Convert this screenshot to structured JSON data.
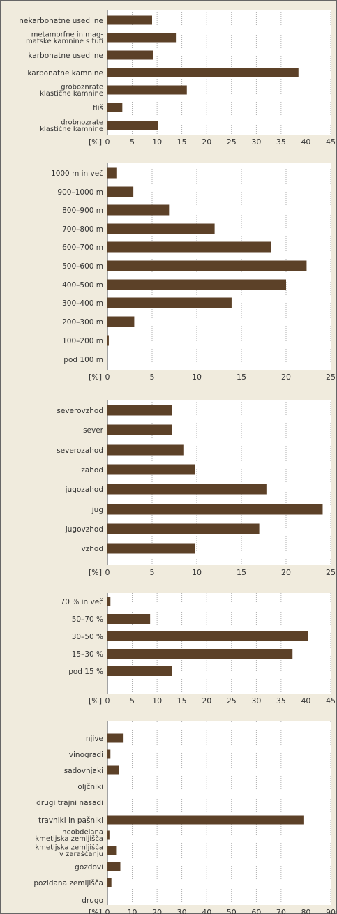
{
  "unit_label": "[%]",
  "colors": {
    "background": "#f0ebdd",
    "plot": "#ffffff",
    "bar": "#5c4128",
    "grid": "#9a9a9a",
    "text": "#333333"
  },
  "chart_data": [
    {
      "type": "bar",
      "orientation": "horizontal",
      "xlim": [
        0,
        45
      ],
      "ticks": [
        0,
        5,
        10,
        15,
        20,
        25,
        30,
        35,
        40,
        45
      ],
      "categories": [
        {
          "label": [
            "nekarbonatne usedline"
          ],
          "value": 9
        },
        {
          "label": [
            "metamorfne in mag-",
            "matske kamnine s tufi"
          ],
          "value": 13.8
        },
        {
          "label": [
            "karbonatne usedline"
          ],
          "value": 9.2
        },
        {
          "label": [
            "karbonatne kamnine"
          ],
          "value": 38.5
        },
        {
          "label": [
            "groboznrate",
            "klastične kamnine"
          ],
          "value": 16
        },
        {
          "label": [
            "fliš"
          ],
          "value": 3
        },
        {
          "label": [
            "drobnozrate",
            "klastične kamnine"
          ],
          "value": 10.2
        }
      ]
    },
    {
      "type": "bar",
      "orientation": "horizontal",
      "xlim": [
        0,
        25
      ],
      "ticks": [
        0,
        5,
        10,
        15,
        20,
        25
      ],
      "categories": [
        {
          "label": [
            "1000 m in več"
          ],
          "value": 1
        },
        {
          "label": [
            "900–1000 m"
          ],
          "value": 2.9
        },
        {
          "label": [
            "800–900 m"
          ],
          "value": 6.9
        },
        {
          "label": [
            "700–800 m"
          ],
          "value": 12
        },
        {
          "label": [
            "600–700 m"
          ],
          "value": 18.3
        },
        {
          "label": [
            "500–600 m"
          ],
          "value": 22.3
        },
        {
          "label": [
            "400–500 m"
          ],
          "value": 20
        },
        {
          "label": [
            "300–400 m"
          ],
          "value": 13.9
        },
        {
          "label": [
            "200–300 m"
          ],
          "value": 3
        },
        {
          "label": [
            "100–200 m"
          ],
          "value": 0.15
        },
        {
          "label": [
            "pod 100 m"
          ],
          "value": 0
        }
      ]
    },
    {
      "type": "bar",
      "orientation": "horizontal",
      "xlim": [
        0,
        25
      ],
      "ticks": [
        0,
        5,
        10,
        15,
        20,
        25
      ],
      "categories": [
        {
          "label": [
            "severovzhod"
          ],
          "value": 7.2
        },
        {
          "label": [
            "sever"
          ],
          "value": 7.2
        },
        {
          "label": [
            "severozahod"
          ],
          "value": 8.5
        },
        {
          "label": [
            "zahod"
          ],
          "value": 9.8
        },
        {
          "label": [
            "jugozahod"
          ],
          "value": 17.8
        },
        {
          "label": [
            "jug"
          ],
          "value": 24.1
        },
        {
          "label": [
            "jugovzhod"
          ],
          "value": 17
        },
        {
          "label": [
            "vzhod"
          ],
          "value": 9.8
        }
      ]
    },
    {
      "type": "bar",
      "orientation": "horizontal",
      "xlim": [
        0,
        45
      ],
      "ticks": [
        0,
        5,
        10,
        15,
        20,
        25,
        30,
        35,
        40,
        45
      ],
      "categories": [
        {
          "label": [
            "70 % in več"
          ],
          "value": 0.6
        },
        {
          "label": [
            "50–70 %"
          ],
          "value": 8.6
        },
        {
          "label": [
            "30–50 %"
          ],
          "value": 40.4
        },
        {
          "label": [
            "15–30 %"
          ],
          "value": 37.3
        },
        {
          "label": [
            "pod 15 %"
          ],
          "value": 13
        }
      ]
    },
    {
      "type": "bar",
      "orientation": "horizontal",
      "xlim": [
        0,
        90
      ],
      "ticks": [
        0,
        10,
        20,
        30,
        40,
        50,
        60,
        70,
        80,
        90
      ],
      "categories": [
        {
          "label": [
            "njive"
          ],
          "value": 6.5
        },
        {
          "label": [
            "vinogradi"
          ],
          "value": 1.2
        },
        {
          "label": [
            "sadovnjaki"
          ],
          "value": 4.7
        },
        {
          "label": [
            "oljčniki"
          ],
          "value": 0
        },
        {
          "label": [
            "drugi trajni nasadi"
          ],
          "value": 0
        },
        {
          "label": [
            "travniki in pašniki"
          ],
          "value": 79
        },
        {
          "label": [
            "neobdelana",
            "kmetijska zemljišča"
          ],
          "value": 0.8
        },
        {
          "label": [
            "kmetijska zemljišča",
            "v zaraščanju"
          ],
          "value": 3.5
        },
        {
          "label": [
            "gozdovi"
          ],
          "value": 5.2
        },
        {
          "label": [
            "pozidana zemljišča"
          ],
          "value": 1.6
        },
        {
          "label": [
            "drugo"
          ],
          "value": 0
        }
      ]
    }
  ]
}
